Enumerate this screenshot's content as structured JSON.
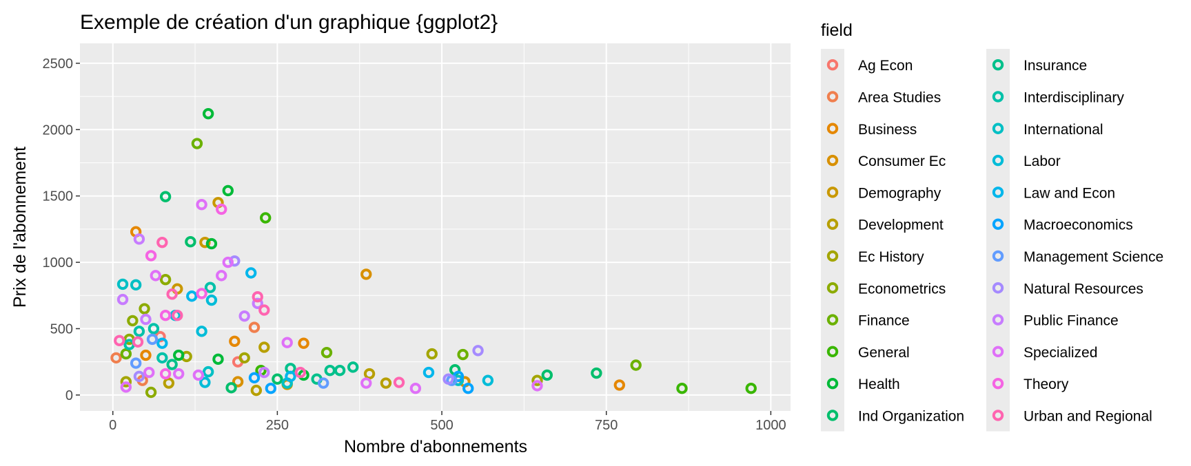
{
  "chart_data": {
    "type": "scatter",
    "title": "Exemple de création d'un graphique {ggplot2}",
    "xlabel": "Nombre d'abonnements",
    "ylabel": "Prix de l'abonnement",
    "xlim": [
      -50,
      1030
    ],
    "ylim": [
      -120,
      2650
    ],
    "x_ticks": [
      0,
      250,
      500,
      750,
      1000
    ],
    "y_ticks": [
      0,
      500,
      1000,
      1500,
      2000,
      2500
    ],
    "x_tick_labels": [
      "0",
      "250",
      "500",
      "750",
      "1000"
    ],
    "y_tick_labels": [
      "0",
      "500",
      "1000",
      "1500",
      "2000",
      "2500"
    ],
    "grid": true,
    "panel_background": "#ebebeb",
    "legend": {
      "title": "field",
      "position": "right",
      "columns": 2
    },
    "series": [
      {
        "name": "Ag Econ",
        "color": "#F8766D",
        "points": [
          [
            72,
            440
          ],
          [
            190,
            250
          ]
        ]
      },
      {
        "name": "Area Studies",
        "color": "#F07F4E",
        "points": [
          [
            5,
            280
          ],
          [
            215,
            510
          ],
          [
            45,
            110
          ]
        ]
      },
      {
        "name": "Business",
        "color": "#E58700",
        "points": [
          [
            35,
            1230
          ],
          [
            770,
            75
          ],
          [
            290,
            390
          ],
          [
            185,
            405
          ],
          [
            50,
            300
          ]
        ]
      },
      {
        "name": "Consumer Ec",
        "color": "#D89000",
        "points": [
          [
            385,
            910
          ],
          [
            190,
            100
          ],
          [
            535,
            100
          ]
        ]
      },
      {
        "name": "Demography",
        "color": "#C99800",
        "points": [
          [
            160,
            1450
          ],
          [
            140,
            1150
          ],
          [
            98,
            800
          ],
          [
            265,
            80
          ]
        ]
      },
      {
        "name": "Development",
        "color": "#B79F00",
        "points": [
          [
            230,
            360
          ],
          [
            415,
            90
          ],
          [
            390,
            160
          ],
          [
            218,
            35
          ],
          [
            85,
            90
          ]
        ]
      },
      {
        "name": "Ec History",
        "color": "#A3A500",
        "points": [
          [
            112,
            290
          ],
          [
            645,
            110
          ],
          [
            485,
            310
          ],
          [
            200,
            280
          ],
          [
            20,
            100
          ]
        ]
      },
      {
        "name": "Econometrics",
        "color": "#8CAB00",
        "points": [
          [
            48,
            650
          ],
          [
            80,
            870
          ],
          [
            58,
            20
          ],
          [
            30,
            560
          ],
          [
            25,
            420
          ]
        ]
      },
      {
        "name": "Finance",
        "color": "#6BB100",
        "points": [
          [
            128,
            1895
          ],
          [
            532,
            305
          ],
          [
            795,
            225
          ],
          [
            325,
            320
          ],
          [
            20,
            310
          ]
        ]
      },
      {
        "name": "General",
        "color": "#39B600",
        "points": [
          [
            232,
            1335
          ],
          [
            865,
            50
          ],
          [
            970,
            50
          ],
          [
            225,
            185
          ]
        ]
      },
      {
        "name": "Health",
        "color": "#00BA38",
        "points": [
          [
            145,
            2120
          ],
          [
            175,
            1540
          ],
          [
            150,
            1140
          ],
          [
            290,
            150
          ],
          [
            160,
            270
          ],
          [
            100,
            300
          ]
        ]
      },
      {
        "name": "Ind Organization",
        "color": "#00BE6C",
        "points": [
          [
            80,
            1495
          ],
          [
            118,
            1155
          ],
          [
            660,
            150
          ],
          [
            735,
            165
          ],
          [
            520,
            190
          ],
          [
            180,
            55
          ],
          [
            250,
            120
          ]
        ]
      },
      {
        "name": "Insurance",
        "color": "#00C08B",
        "points": [
          [
            365,
            210
          ],
          [
            330,
            185
          ],
          [
            270,
            200
          ],
          [
            310,
            120
          ],
          [
            345,
            185
          ],
          [
            90,
            230
          ]
        ]
      },
      {
        "name": "Interdisciplinary",
        "color": "#00C1A9",
        "points": [
          [
            148,
            810
          ],
          [
            62,
            500
          ],
          [
            40,
            480
          ],
          [
            25,
            380
          ],
          [
            75,
            280
          ]
        ]
      },
      {
        "name": "International",
        "color": "#00BFC4",
        "points": [
          [
            15,
            835
          ],
          [
            35,
            830
          ],
          [
            145,
            175
          ],
          [
            265,
            90
          ],
          [
            525,
            110
          ]
        ]
      },
      {
        "name": "Labor",
        "color": "#00BCD8",
        "points": [
          [
            150,
            715
          ],
          [
            95,
            600
          ],
          [
            135,
            480
          ],
          [
            570,
            110
          ],
          [
            140,
            95
          ]
        ]
      },
      {
        "name": "Law and Econ",
        "color": "#00B6EB",
        "points": [
          [
            120,
            745
          ],
          [
            210,
            920
          ],
          [
            480,
            170
          ],
          [
            270,
            140
          ],
          [
            75,
            390
          ]
        ]
      },
      {
        "name": "Macroeconomics",
        "color": "#06A4FF",
        "points": [
          [
            240,
            50
          ],
          [
            540,
            50
          ],
          [
            525,
            140
          ],
          [
            215,
            130
          ]
        ]
      },
      {
        "name": "Management Science",
        "color": "#619CFF",
        "points": [
          [
            60,
            420
          ],
          [
            320,
            90
          ],
          [
            515,
            110
          ],
          [
            35,
            240
          ]
        ]
      },
      {
        "name": "Natural Resources",
        "color": "#A58AFF",
        "points": [
          [
            185,
            1010
          ],
          [
            555,
            335
          ],
          [
            510,
            120
          ],
          [
            40,
            140
          ]
        ]
      },
      {
        "name": "Public Finance",
        "color": "#C77CFF",
        "points": [
          [
            40,
            1175
          ],
          [
            15,
            720
          ],
          [
            200,
            595
          ],
          [
            50,
            570
          ],
          [
            220,
            690
          ],
          [
            230,
            170
          ]
        ]
      },
      {
        "name": "Specialized",
        "color": "#DF70F8",
        "points": [
          [
            65,
            900
          ],
          [
            135,
            1435
          ],
          [
            165,
            900
          ],
          [
            175,
            1000
          ],
          [
            265,
            395
          ],
          [
            645,
            70
          ],
          [
            385,
            90
          ],
          [
            460,
            50
          ],
          [
            20,
            60
          ],
          [
            55,
            170
          ],
          [
            100,
            160
          ],
          [
            130,
            150
          ]
        ]
      },
      {
        "name": "Theory",
        "color": "#F564E3",
        "points": [
          [
            165,
            1400
          ],
          [
            80,
            600
          ],
          [
            58,
            1050
          ],
          [
            135,
            765
          ],
          [
            80,
            160
          ]
        ]
      },
      {
        "name": "Urban and Regional",
        "color": "#FF64B0",
        "points": [
          [
            75,
            1150
          ],
          [
            90,
            760
          ],
          [
            220,
            740
          ],
          [
            230,
            640
          ],
          [
            435,
            95
          ],
          [
            285,
            170
          ],
          [
            10,
            410
          ],
          [
            98,
            600
          ],
          [
            38,
            400
          ]
        ]
      }
    ]
  }
}
